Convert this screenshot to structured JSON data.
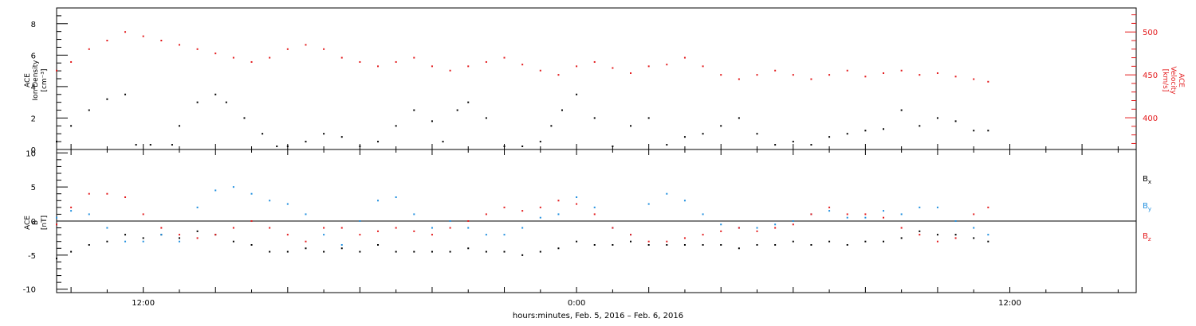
{
  "colors": {
    "black": "#000000",
    "red": "#e31a1c",
    "blue": "#1f8fdf"
  },
  "footer_label": "hours:minutes, Feb.  5, 2016 – Feb.  6, 2016",
  "chart_data": [
    {
      "type": "scatter",
      "ylabel_lines": [
        "ACE",
        "Ion Density",
        "[cm⁻³]"
      ],
      "ylim": [
        0,
        9
      ],
      "yticks": [
        0,
        2,
        4,
        6,
        8
      ],
      "y2label_lines": [
        "ACE",
        "Velocity",
        "[km/s]"
      ],
      "y2lim": [
        363,
        528
      ],
      "y2ticks": [
        400,
        450,
        500
      ],
      "xlim_hours": [
        9.6,
        39.5
      ],
      "xtick_labels": [
        {
          "h": 12,
          "label": "12:00"
        },
        {
          "h": 24,
          "label": "0:00"
        },
        {
          "h": 36,
          "label": "12:00"
        }
      ],
      "series": [
        {
          "axis": "left",
          "color": "#000000",
          "x": [
            9.6,
            10,
            10.5,
            11,
            11.5,
            11.8,
            12.2,
            12.8,
            13,
            13.5,
            14,
            14.3,
            14.8,
            15.3,
            15.7,
            16,
            16.5,
            17,
            17.5,
            18,
            18.5,
            19,
            19.5,
            20,
            20.3,
            20.7,
            21,
            21.5,
            22,
            22.5,
            23,
            23.3,
            23.6,
            24,
            24.5,
            25,
            25.5,
            26,
            26.5,
            27,
            27.5,
            28,
            28.5,
            29,
            29.5,
            30,
            30.5,
            31,
            31.5,
            32,
            32.5,
            33,
            33.5,
            34,
            34.5,
            35,
            35.4
          ],
          "y": [
            0.5,
            1.5,
            2.5,
            3.2,
            3.5,
            0.3,
            0.3,
            0.3,
            1.5,
            3,
            3.5,
            3,
            2,
            1,
            0.2,
            0.2,
            0.5,
            1,
            0.8,
            0.2,
            0.5,
            1.5,
            2.5,
            1.8,
            0.5,
            2.5,
            3,
            2,
            0.2,
            0.2,
            0.5,
            1.5,
            2.5,
            3.5,
            2,
            0.2,
            1.5,
            2,
            0.3,
            0.8,
            1,
            1.5,
            2,
            1,
            0.3,
            0.5,
            0.3,
            0.8,
            1,
            1.2,
            1.3,
            2.5,
            1.5,
            2,
            1.8,
            1.2,
            1.2
          ]
        },
        {
          "axis": "right",
          "color": "#e31a1c",
          "x": [
            9.6,
            10,
            10.5,
            11,
            11.5,
            12,
            12.5,
            13,
            13.5,
            14,
            14.5,
            15,
            15.5,
            16,
            16.5,
            17,
            17.5,
            18,
            18.5,
            19,
            19.5,
            20,
            20.5,
            21,
            21.5,
            22,
            22.5,
            23,
            23.5,
            24,
            24.5,
            25,
            25.5,
            26,
            26.5,
            27,
            27.5,
            28,
            28.5,
            29,
            29.5,
            30,
            30.5,
            31,
            31.5,
            32,
            32.5,
            33,
            33.5,
            34,
            34.5,
            35,
            35.4
          ],
          "y": [
            455,
            465,
            480,
            490,
            500,
            495,
            490,
            485,
            480,
            475,
            470,
            465,
            470,
            480,
            485,
            480,
            470,
            465,
            460,
            465,
            470,
            460,
            455,
            460,
            465,
            470,
            462,
            455,
            450,
            460,
            465,
            458,
            452,
            460,
            462,
            470,
            460,
            450,
            445,
            450,
            455,
            450,
            445,
            450,
            455,
            448,
            452,
            455,
            450,
            452,
            448,
            445,
            442
          ]
        }
      ]
    },
    {
      "type": "scatter",
      "ylabel_lines": [
        "ACE",
        "B",
        "[nT]"
      ],
      "ylim": [
        -10.5,
        10.5
      ],
      "yticks": [
        -10,
        -5,
        0,
        5,
        10
      ],
      "legend_position": "right",
      "xlim_hours": [
        9.6,
        39.5
      ],
      "xtick_labels": [
        {
          "h": 12,
          "label": "12:00"
        },
        {
          "h": 24,
          "label": "0:00"
        },
        {
          "h": 36,
          "label": "12:00"
        }
      ],
      "legend": [
        {
          "label": "Bx",
          "base": "B",
          "sub": "x",
          "color": "#000000"
        },
        {
          "label": "By",
          "base": "B",
          "sub": "y",
          "color": "#1f8fdf"
        },
        {
          "label": "Bz",
          "base": "B",
          "sub": "z",
          "color": "#e31a1c"
        }
      ],
      "series": [
        {
          "name": "Bx",
          "color": "#000000",
          "x": [
            9.6,
            10,
            10.5,
            11,
            11.5,
            12,
            12.5,
            13,
            13.5,
            14,
            14.5,
            15,
            15.5,
            16,
            16.5,
            17,
            17.5,
            18,
            18.5,
            19,
            19.5,
            20,
            20.5,
            21,
            21.5,
            22,
            22.5,
            23,
            23.5,
            24,
            24.5,
            25,
            25.5,
            26,
            26.5,
            27,
            27.5,
            28,
            28.5,
            29,
            29.5,
            30,
            30.5,
            31,
            31.5,
            32,
            32.5,
            33,
            33.5,
            34,
            34.5,
            35,
            35.4
          ],
          "y": [
            -5.5,
            -4.5,
            -3.5,
            -3,
            -2,
            -2.5,
            -2,
            -2.5,
            -1.5,
            -2,
            -3,
            -3.5,
            -4.5,
            -4.5,
            -4,
            -4.5,
            -4,
            -4.5,
            -3.5,
            -4.5,
            -4.5,
            -4.5,
            -4.5,
            -4,
            -4.5,
            -4.5,
            -5,
            -4.5,
            -4,
            -3,
            -3.5,
            -3.5,
            -3,
            -3.5,
            -3.5,
            -3.5,
            -3.5,
            -3.5,
            -4,
            -3.5,
            -3.5,
            -3,
            -3.5,
            -3,
            -3.5,
            -3,
            -3,
            -2.5,
            -1.5,
            -2,
            -2,
            -2.5,
            -3
          ]
        },
        {
          "name": "By",
          "color": "#1f8fdf",
          "x": [
            9.6,
            10,
            10.5,
            11,
            11.5,
            12,
            12.5,
            13,
            13.5,
            14,
            14.5,
            15,
            15.5,
            16,
            16.5,
            17,
            17.5,
            18,
            18.5,
            19,
            19.5,
            20,
            20.5,
            21,
            21.5,
            22,
            22.5,
            23,
            23.5,
            24,
            24.5,
            25,
            25.5,
            26,
            26.5,
            27,
            27.5,
            28,
            28.5,
            29,
            29.5,
            30,
            30.5,
            31,
            31.5,
            32,
            32.5,
            33,
            33.5,
            34,
            34.5,
            35,
            35.4
          ],
          "y": [
            0.5,
            1.5,
            1,
            -1,
            -3,
            -3,
            -2,
            -3,
            2,
            4.5,
            5,
            4,
            3,
            2.5,
            1,
            -2,
            -3.5,
            0,
            3,
            3.5,
            1,
            -1,
            0,
            -1,
            -2,
            -2,
            -1,
            0.5,
            1,
            3.5,
            2,
            -1,
            -2,
            2.5,
            4,
            3,
            1,
            -0.5,
            -1,
            -1,
            -0.5,
            0,
            1,
            1.5,
            0.5,
            0.5,
            1.5,
            1,
            2,
            2,
            0,
            -1,
            -2
          ]
        },
        {
          "name": "Bz",
          "color": "#e31a1c",
          "x": [
            9.6,
            10,
            10.5,
            11,
            11.5,
            12,
            12.5,
            13,
            13.5,
            14,
            14.5,
            15,
            15.5,
            16,
            16.5,
            17,
            17.5,
            18,
            18.5,
            19,
            19.5,
            20,
            20.5,
            21,
            21.5,
            22,
            22.5,
            23,
            23.5,
            24,
            24.5,
            25,
            25.5,
            26,
            26.5,
            27,
            27.5,
            28,
            28.5,
            29,
            29.5,
            30,
            30.5,
            31,
            31.5,
            32,
            32.5,
            33,
            33.5,
            34,
            34.5,
            35,
            35.4
          ],
          "y": [
            -0.5,
            2,
            4,
            4,
            3.5,
            1,
            -1,
            -2,
            -2.5,
            -2,
            -1,
            0,
            -1,
            -2,
            -3,
            -1,
            -1,
            -2,
            -1.5,
            -1,
            -1.5,
            -2,
            -1,
            0,
            1,
            2,
            1.5,
            2,
            3,
            2.5,
            1,
            -1,
            -2,
            -3,
            -3,
            -2.5,
            -2,
            -1.5,
            -1,
            -1.5,
            -1,
            -0.5,
            1,
            2,
            1,
            1,
            0.5,
            -1,
            -2,
            -3,
            -2.5,
            1,
            2
          ]
        }
      ]
    }
  ]
}
